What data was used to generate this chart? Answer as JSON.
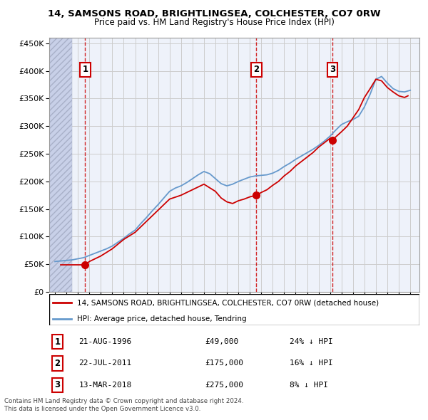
{
  "title1": "14, SAMSONS ROAD, BRIGHTLINGSEA, COLCHESTER, CO7 0RW",
  "title2": "Price paid vs. HM Land Registry's House Price Index (HPI)",
  "xlim_start": 1993.5,
  "xlim_end": 2025.8,
  "ylim_min": 0,
  "ylim_max": 460000,
  "yticks": [
    0,
    50000,
    100000,
    150000,
    200000,
    250000,
    300000,
    350000,
    400000,
    450000
  ],
  "ytick_labels": [
    "£0",
    "£50K",
    "£100K",
    "£150K",
    "£200K",
    "£250K",
    "£300K",
    "£350K",
    "£400K",
    "£450K"
  ],
  "transactions": [
    {
      "num": 1,
      "date": "21-AUG-1996",
      "price": 49000,
      "price_str": "£49,000",
      "year": 1996.64,
      "pct": "24% ↓ HPI"
    },
    {
      "num": 2,
      "date": "22-JUL-2011",
      "price": 175000,
      "price_str": "£175,000",
      "year": 2011.56,
      "pct": "16% ↓ HPI"
    },
    {
      "num": 3,
      "date": "13-MAR-2018",
      "price": 275000,
      "price_str": "£275,000",
      "year": 2018.2,
      "pct": "8% ↓ HPI"
    }
  ],
  "property_color": "#cc0000",
  "hpi_color": "#6699cc",
  "grid_color": "#cccccc",
  "bg_color": "#eef2fa",
  "hatch_region_end": 1995.5,
  "legend_label_property": "14, SAMSONS ROAD, BRIGHTLINGSEA, COLCHESTER, CO7 0RW (detached house)",
  "legend_label_hpi": "HPI: Average price, detached house, Tendring",
  "footnote1": "Contains HM Land Registry data © Crown copyright and database right 2024.",
  "footnote2": "This data is licensed under the Open Government Licence v3.0.",
  "hpi_years": [
    1994,
    1994.5,
    1995,
    1995.5,
    1996,
    1996.5,
    1997,
    1997.5,
    1998,
    1998.5,
    1999,
    1999.5,
    2000,
    2000.5,
    2001,
    2001.5,
    2002,
    2002.5,
    2003,
    2003.5,
    2004,
    2004.5,
    2005,
    2005.5,
    2006,
    2006.5,
    2007,
    2007.5,
    2008,
    2008.5,
    2009,
    2009.5,
    2010,
    2010.5,
    2011,
    2011.5,
    2012,
    2012.5,
    2013,
    2013.5,
    2014,
    2014.5,
    2015,
    2015.5,
    2016,
    2016.5,
    2017,
    2017.5,
    2018,
    2018.5,
    2019,
    2019.5,
    2020,
    2020.5,
    2021,
    2021.5,
    2022,
    2022.5,
    2023,
    2023.5,
    2024,
    2024.5,
    2025
  ],
  "hpi_vals": [
    55000,
    56000,
    57000,
    58000,
    60000,
    62000,
    66000,
    70000,
    74000,
    78000,
    83000,
    90000,
    97000,
    105000,
    112000,
    124000,
    135000,
    147000,
    158000,
    170000,
    182000,
    188000,
    192000,
    198000,
    205000,
    212000,
    218000,
    214000,
    205000,
    196000,
    192000,
    195000,
    200000,
    204000,
    208000,
    210000,
    211000,
    212000,
    215000,
    220000,
    227000,
    233000,
    240000,
    246000,
    252000,
    258000,
    265000,
    273000,
    282000,
    293000,
    303000,
    308000,
    312000,
    318000,
    335000,
    358000,
    385000,
    390000,
    378000,
    368000,
    363000,
    362000,
    365000
  ],
  "prop_years": [
    1994.5,
    1995,
    1996,
    1996.64,
    1997,
    1998,
    1999,
    2000,
    2001,
    2002,
    2003,
    2004,
    2005,
    2006,
    2007,
    2008,
    2008.5,
    2009,
    2009.5,
    2010,
    2010.5,
    2011,
    2011.56,
    2012,
    2012.5,
    2013,
    2013.5,
    2014,
    2014.5,
    2015,
    2015.5,
    2016,
    2016.5,
    2017,
    2017.5,
    2018,
    2018.2,
    2019,
    2019.5,
    2020,
    2020.5,
    2021,
    2021.5,
    2022,
    2022.5,
    2023,
    2023.5,
    2024,
    2024.5,
    2024.8
  ],
  "prop_vals": [
    49000,
    49000,
    49000,
    49000,
    55000,
    65000,
    78000,
    95000,
    108000,
    128000,
    148000,
    168000,
    175000,
    185000,
    195000,
    182000,
    170000,
    163000,
    160000,
    165000,
    168000,
    172000,
    175000,
    180000,
    185000,
    193000,
    200000,
    210000,
    218000,
    228000,
    236000,
    244000,
    252000,
    262000,
    270000,
    278000,
    275000,
    290000,
    300000,
    315000,
    330000,
    352000,
    368000,
    385000,
    382000,
    370000,
    362000,
    355000,
    352000,
    355000
  ]
}
